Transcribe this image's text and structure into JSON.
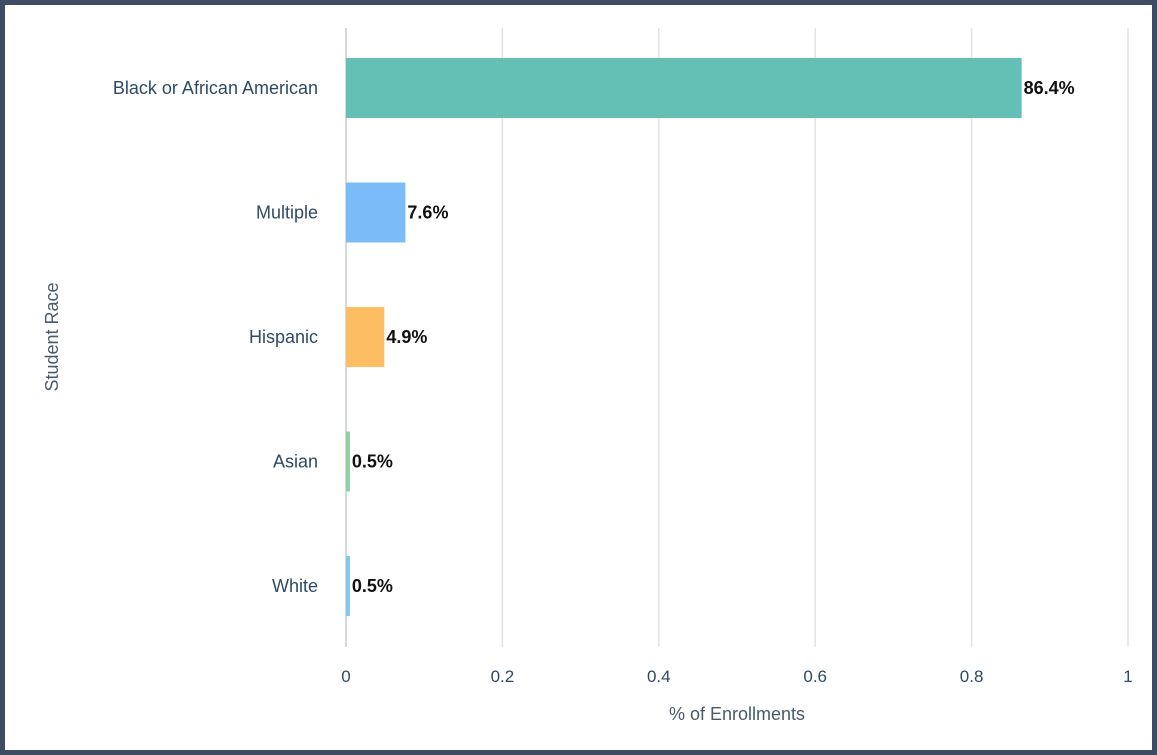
{
  "chart_data": {
    "type": "bar",
    "orientation": "horizontal",
    "categories": [
      "Black or African American",
      "Multiple",
      "Hispanic",
      "Asian",
      "White"
    ],
    "values": [
      0.864,
      0.076,
      0.049,
      0.005,
      0.005
    ],
    "data_labels": [
      "86.4%",
      "7.6%",
      "4.9%",
      "0.5%",
      "0.5%"
    ],
    "colors": [
      "#64bfb5",
      "#7bbcf8",
      "#fcbd63",
      "#8ecfa6",
      "#86c5ee"
    ],
    "xlabel": "% of Enrollments",
    "ylabel": "Student Race",
    "xlim": [
      0,
      1
    ],
    "xticks": [
      0,
      0.2,
      0.4,
      0.6,
      0.8,
      1
    ],
    "xtick_labels": [
      "0",
      "0.2",
      "0.4",
      "0.6",
      "0.8",
      "1"
    ],
    "grid": true,
    "legend": "none"
  }
}
